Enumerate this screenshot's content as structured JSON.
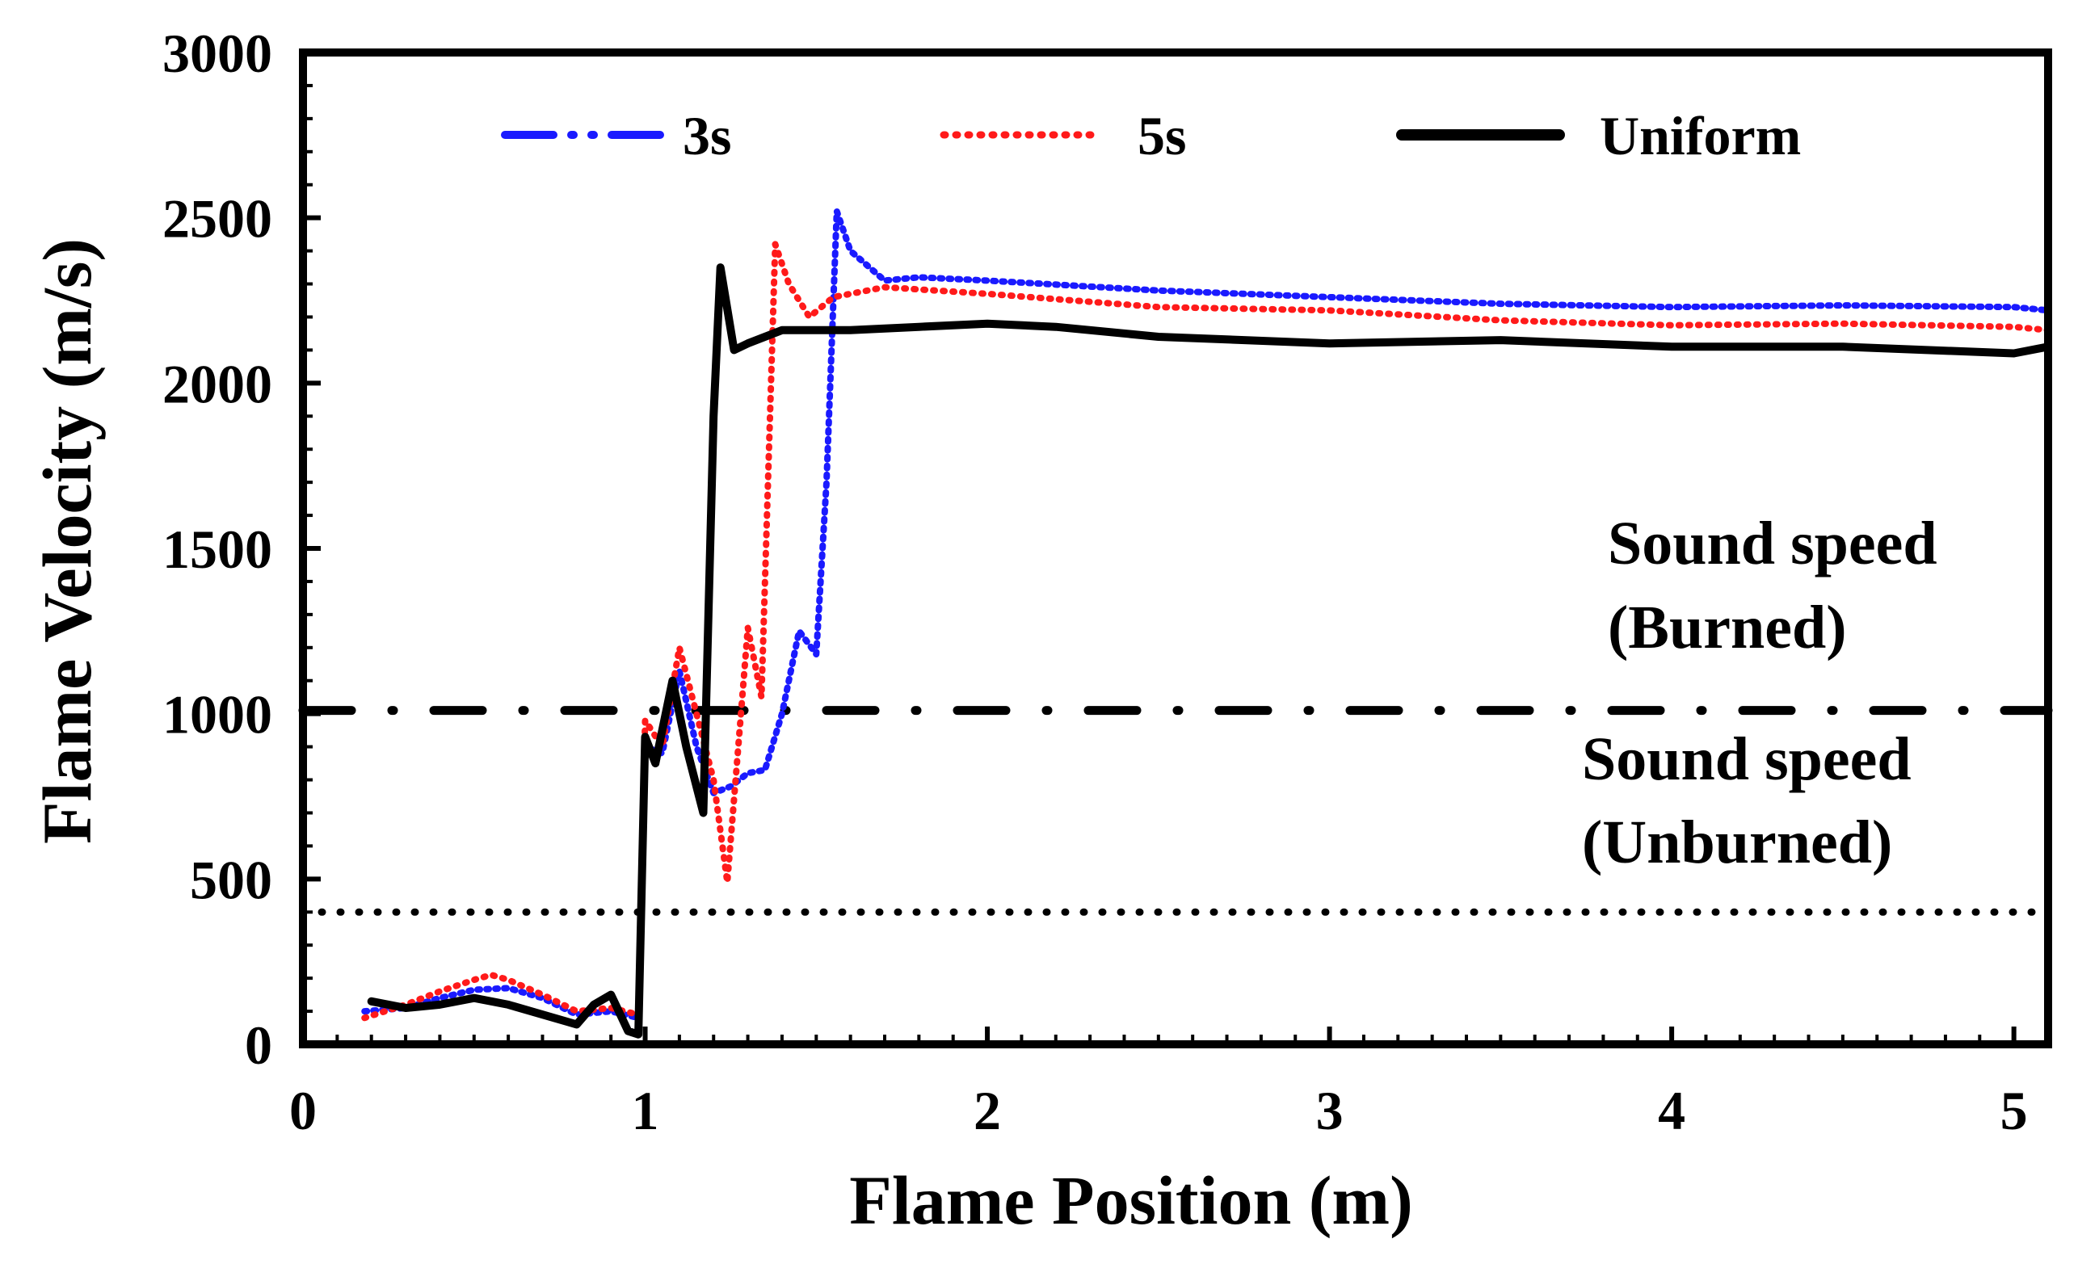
{
  "chart_data": {
    "type": "line",
    "xlabel": "Flame Position (m)",
    "ylabel": "Flame Velocity (m/s)",
    "xlim": [
      0,
      5.1
    ],
    "ylim": [
      0,
      3000
    ],
    "xticks": [
      "0",
      "1",
      "2",
      "3",
      "4",
      "5"
    ],
    "yticks": [
      "0",
      "500",
      "1000",
      "1500",
      "2000",
      "2500",
      "3000"
    ],
    "grid": false,
    "legend_position": "top",
    "series": [
      {
        "name": "3s",
        "color": "#1a1aff",
        "style": "dash-dot",
        "points": [
          [
            0.18,
            100
          ],
          [
            0.3,
            110
          ],
          [
            0.4,
            140
          ],
          [
            0.5,
            165
          ],
          [
            0.6,
            170
          ],
          [
            0.7,
            140
          ],
          [
            0.8,
            90
          ],
          [
            0.9,
            100
          ],
          [
            0.98,
            80
          ],
          [
            1.0,
            900
          ],
          [
            1.05,
            880
          ],
          [
            1.1,
            1130
          ],
          [
            1.15,
            900
          ],
          [
            1.2,
            760
          ],
          [
            1.25,
            780
          ],
          [
            1.3,
            820
          ],
          [
            1.35,
            830
          ],
          [
            1.4,
            1000
          ],
          [
            1.45,
            1250
          ],
          [
            1.5,
            1180
          ],
          [
            1.53,
            1700
          ],
          [
            1.56,
            2520
          ],
          [
            1.6,
            2400
          ],
          [
            1.7,
            2310
          ],
          [
            1.8,
            2320
          ],
          [
            2.0,
            2310
          ],
          [
            2.5,
            2280
          ],
          [
            3.0,
            2260
          ],
          [
            3.5,
            2240
          ],
          [
            4.0,
            2230
          ],
          [
            4.5,
            2235
          ],
          [
            5.0,
            2230
          ],
          [
            5.1,
            2220
          ]
        ]
      },
      {
        "name": "5s",
        "color": "#ff1a1a",
        "style": "dotted",
        "points": [
          [
            0.18,
            80
          ],
          [
            0.3,
            120
          ],
          [
            0.4,
            160
          ],
          [
            0.5,
            195
          ],
          [
            0.55,
            210
          ],
          [
            0.6,
            195
          ],
          [
            0.7,
            150
          ],
          [
            0.8,
            100
          ],
          [
            0.9,
            110
          ],
          [
            0.98,
            90
          ],
          [
            1.0,
            980
          ],
          [
            1.05,
            900
          ],
          [
            1.1,
            1200
          ],
          [
            1.15,
            1000
          ],
          [
            1.2,
            800
          ],
          [
            1.24,
            490
          ],
          [
            1.28,
            1000
          ],
          [
            1.3,
            1260
          ],
          [
            1.34,
            1050
          ],
          [
            1.38,
            2420
          ],
          [
            1.42,
            2300
          ],
          [
            1.48,
            2200
          ],
          [
            1.55,
            2260
          ],
          [
            1.7,
            2290
          ],
          [
            2.0,
            2270
          ],
          [
            2.5,
            2230
          ],
          [
            3.0,
            2220
          ],
          [
            3.5,
            2190
          ],
          [
            4.0,
            2175
          ],
          [
            4.5,
            2180
          ],
          [
            5.0,
            2170
          ],
          [
            5.1,
            2160
          ]
        ]
      },
      {
        "name": "Uniform",
        "color": "#000000",
        "style": "solid",
        "points": [
          [
            0.2,
            130
          ],
          [
            0.3,
            110
          ],
          [
            0.4,
            120
          ],
          [
            0.5,
            140
          ],
          [
            0.6,
            120
          ],
          [
            0.7,
            90
          ],
          [
            0.8,
            60
          ],
          [
            0.85,
            120
          ],
          [
            0.9,
            150
          ],
          [
            0.95,
            40
          ],
          [
            0.98,
            30
          ],
          [
            1.0,
            930
          ],
          [
            1.03,
            850
          ],
          [
            1.08,
            1100
          ],
          [
            1.12,
            900
          ],
          [
            1.17,
            700
          ],
          [
            1.2,
            1900
          ],
          [
            1.22,
            2350
          ],
          [
            1.26,
            2100
          ],
          [
            1.3,
            2120
          ],
          [
            1.4,
            2160
          ],
          [
            1.6,
            2160
          ],
          [
            1.8,
            2170
          ],
          [
            2.0,
            2180
          ],
          [
            2.2,
            2170
          ],
          [
            2.5,
            2140
          ],
          [
            3.0,
            2120
          ],
          [
            3.5,
            2130
          ],
          [
            4.0,
            2110
          ],
          [
            4.5,
            2110
          ],
          [
            5.0,
            2090
          ],
          [
            5.1,
            2110
          ]
        ]
      }
    ],
    "reference_lines": [
      {
        "y": 1010,
        "style": "dash-dot"
      },
      {
        "y": 400,
        "style": "dotted"
      }
    ],
    "annotations": [
      {
        "lines": [
          "Sound speed",
          "(Burned)"
        ]
      },
      {
        "lines": [
          "Sound speed",
          "(Unburned)"
        ]
      }
    ]
  }
}
